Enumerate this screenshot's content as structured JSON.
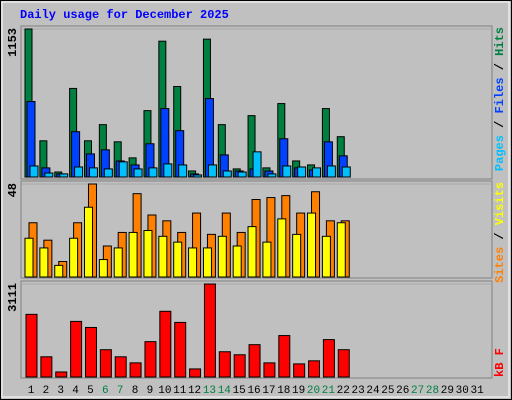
{
  "chart_data": [
    {
      "type": "bar",
      "title": "Daily usage for December 2025",
      "ylim": [
        0,
        1153
      ],
      "yticks": [
        1153
      ],
      "legend": "top",
      "legend_separator": " / ",
      "series": [
        {
          "name": "Pages",
          "color": "#00c0ff",
          "values": [
            86,
            31,
            24,
            78,
            71,
            63,
            118,
            63,
            71,
            102,
            94,
            16,
            94,
            47,
            39,
            196,
            24,
            86,
            78,
            71,
            86,
            78,
            null,
            null,
            null,
            null,
            null,
            null,
            null,
            null,
            null
          ]
        },
        {
          "name": "Files",
          "color": "#0040ff",
          "values": [
            588,
            71,
            24,
            353,
            180,
            212,
            125,
            94,
            259,
            533,
            361,
            24,
            611,
            172,
            47,
            63,
            47,
            298,
            71,
            55,
            274,
            165,
            null,
            null,
            null,
            null,
            null,
            null,
            null,
            null,
            null
          ]
        },
        {
          "name": "Hits",
          "color": "#008040",
          "values": [
            1153,
            282,
            39,
            690,
            282,
            408,
            274,
            149,
            517,
            1058,
            705,
            47,
            1074,
            408,
            63,
            478,
            71,
            572,
            125,
            94,
            533,
            314,
            null,
            null,
            null,
            null,
            null,
            null,
            null,
            null,
            null
          ]
        }
      ]
    },
    {
      "type": "bar",
      "ylim": [
        0,
        48
      ],
      "yticks": [
        48
      ],
      "legend": "top",
      "legend_separator": " / ",
      "series": [
        {
          "name": "Sites",
          "color": "#ff8000",
          "values": [
            28,
            19,
            8,
            28,
            48,
            16,
            23,
            43,
            32,
            29,
            23,
            33,
            22,
            33,
            23,
            40,
            41,
            42,
            33,
            44,
            29,
            29,
            null,
            null,
            null,
            null,
            null,
            null,
            null,
            null,
            null
          ]
        },
        {
          "name": "Visits",
          "color": "#ffff00",
          "values": [
            20,
            15,
            6,
            20,
            36,
            9,
            15,
            23,
            24,
            21,
            18,
            15,
            15,
            21,
            16,
            26,
            18,
            30,
            22,
            33,
            21,
            28,
            null,
            null,
            null,
            null,
            null,
            null,
            null,
            null,
            null
          ]
        }
      ]
    },
    {
      "type": "bar",
      "ylim": [
        0,
        3111
      ],
      "yticks": [
        3111
      ],
      "legend": "bottom",
      "categories": [
        "1",
        "2",
        "3",
        "4",
        "5",
        "6",
        "7",
        "8",
        "9",
        "10",
        "11",
        "12",
        "13",
        "14",
        "15",
        "16",
        "17",
        "18",
        "19",
        "20",
        "21",
        "22",
        "23",
        "24",
        "25",
        "26",
        "27",
        "28",
        "29",
        "30",
        "31"
      ],
      "category_colors": [
        "#000000",
        "#000000",
        "#000000",
        "#000000",
        "#000000",
        "#008040",
        "#008040",
        "#000000",
        "#000000",
        "#000000",
        "#000000",
        "#000000",
        "#008040",
        "#008040",
        "#000000",
        "#000000",
        "#000000",
        "#000000",
        "#000000",
        "#008040",
        "#008040",
        "#000000",
        "#000000",
        "#000000",
        "#000000",
        "#000000",
        "#008040",
        "#008040",
        "#000000",
        "#000000",
        "#000000"
      ],
      "series": [
        {
          "name": "kB F",
          "color": "#ff0000",
          "values": [
            2096,
            676,
            169,
            1860,
            1657,
            913,
            676,
            473,
            1183,
            2198,
            1826,
            270,
            3111,
            845,
            744,
            1082,
            473,
            1386,
            439,
            541,
            1251,
            913,
            null,
            null,
            null,
            null,
            null,
            null,
            null,
            null,
            null
          ]
        }
      ]
    }
  ]
}
